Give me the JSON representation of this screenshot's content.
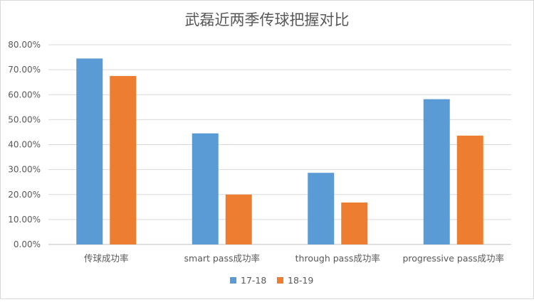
{
  "chart_data": {
    "type": "bar",
    "title": "武磊近两季传球把握对比",
    "categories": [
      "传球成功率",
      "smart pass成功率",
      "through pass成功率",
      "progressive pass成功率"
    ],
    "series": [
      {
        "name": "17-18",
        "color": "#5b9bd5",
        "values": [
          74.5,
          44.5,
          28.7,
          58.2
        ]
      },
      {
        "name": "18-19",
        "color": "#ed7d31",
        "values": [
          67.5,
          20.0,
          16.8,
          43.6
        ]
      }
    ],
    "ylim": [
      0,
      80
    ],
    "yticks": [
      "0.00%",
      "10.00%",
      "20.00%",
      "30.00%",
      "40.00%",
      "50.00%",
      "60.00%",
      "70.00%",
      "80.00%"
    ],
    "xlabel": "",
    "ylabel": "",
    "grid": true,
    "legend_position": "bottom"
  }
}
